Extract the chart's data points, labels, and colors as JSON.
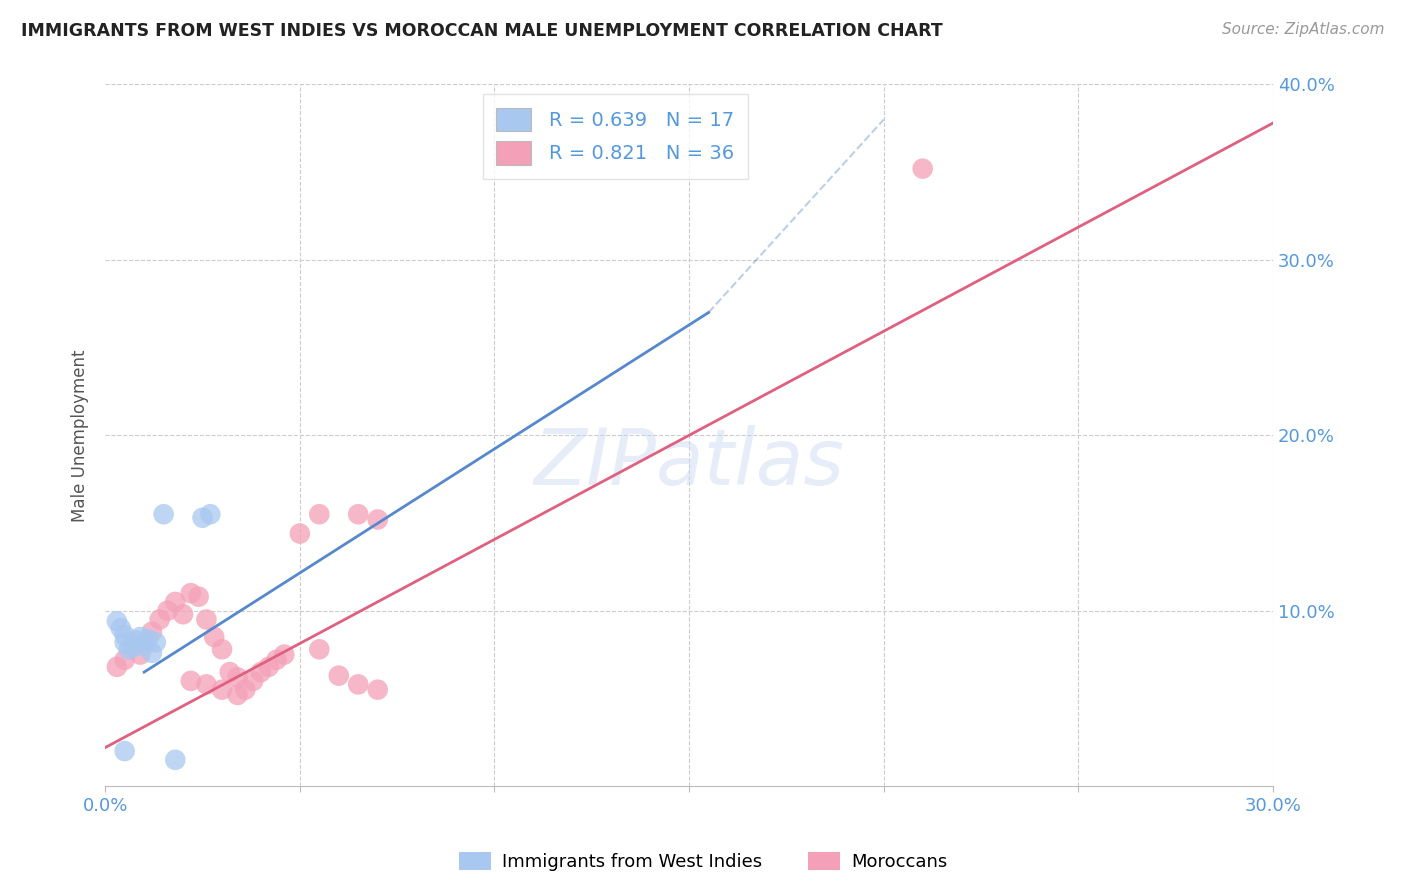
{
  "title": "IMMIGRANTS FROM WEST INDIES VS MOROCCAN MALE UNEMPLOYMENT CORRELATION CHART",
  "source": "Source: ZipAtlas.com",
  "ylabel": "Male Unemployment",
  "xlim": [
    0,
    0.3
  ],
  "ylim": [
    0,
    0.4
  ],
  "legend_label1": "Immigrants from West Indies",
  "legend_label2": "Moroccans",
  "R1": 0.639,
  "N1": 17,
  "R2": 0.821,
  "N2": 36,
  "color_blue": "#A8C8F0",
  "color_pink": "#F4A0B8",
  "color_blue_line": "#5588CC",
  "color_pink_line": "#E06080",
  "color_label": "#5599DD",
  "watermark": "ZIPatlas",
  "blue_points_x": [
    0.003,
    0.004,
    0.005,
    0.005,
    0.006,
    0.007,
    0.008,
    0.009,
    0.01,
    0.011,
    0.012,
    0.013,
    0.025,
    0.027,
    0.015,
    0.018,
    0.005
  ],
  "blue_points_y": [
    0.094,
    0.09,
    0.082,
    0.086,
    0.078,
    0.079,
    0.083,
    0.085,
    0.08,
    0.084,
    0.076,
    0.082,
    0.153,
    0.155,
    0.155,
    0.015,
    0.02
  ],
  "pink_points_x": [
    0.003,
    0.005,
    0.007,
    0.009,
    0.01,
    0.012,
    0.014,
    0.016,
    0.018,
    0.02,
    0.022,
    0.024,
    0.026,
    0.028,
    0.03,
    0.032,
    0.034,
    0.036,
    0.038,
    0.04,
    0.042,
    0.044,
    0.046,
    0.05,
    0.055,
    0.06,
    0.065,
    0.07,
    0.022,
    0.026,
    0.03,
    0.034,
    0.21,
    0.055,
    0.065,
    0.07
  ],
  "pink_points_y": [
    0.068,
    0.072,
    0.08,
    0.075,
    0.082,
    0.088,
    0.095,
    0.1,
    0.105,
    0.098,
    0.11,
    0.108,
    0.095,
    0.085,
    0.078,
    0.065,
    0.062,
    0.055,
    0.06,
    0.065,
    0.068,
    0.072,
    0.075,
    0.144,
    0.078,
    0.063,
    0.058,
    0.055,
    0.06,
    0.058,
    0.055,
    0.052,
    0.352,
    0.155,
    0.155,
    0.152
  ],
  "blue_line_x0": 0.01,
  "blue_line_y0": 0.065,
  "blue_line_x1": 0.155,
  "blue_line_y1": 0.27,
  "pink_line_x0": 0.0,
  "pink_line_y0": 0.022,
  "pink_line_x1": 0.3,
  "pink_line_y1": 0.378
}
